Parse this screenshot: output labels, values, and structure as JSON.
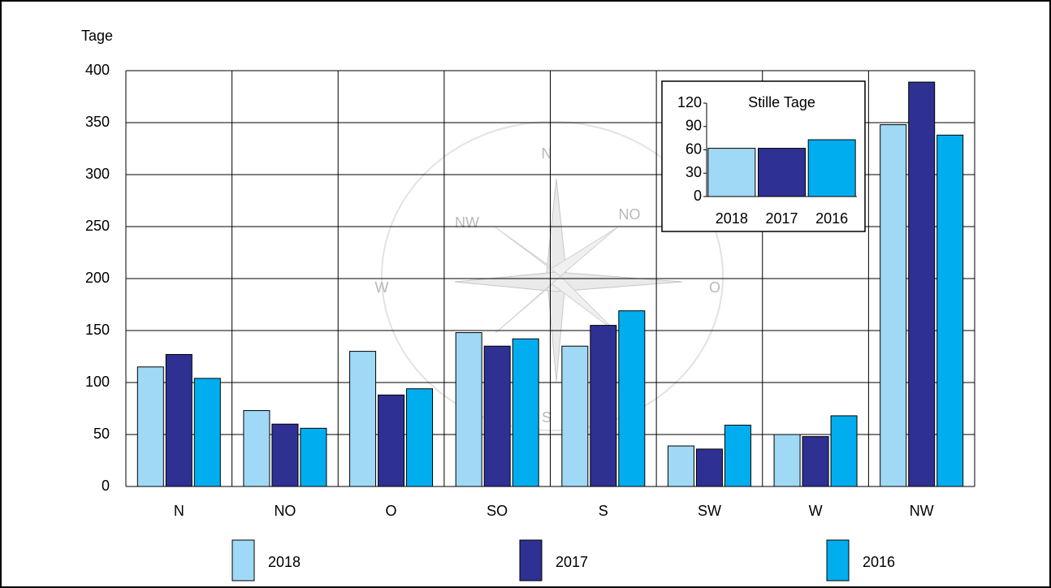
{
  "chart_data": [
    {
      "type": "bar",
      "y_label": "Tage",
      "categories": [
        "N",
        "NO",
        "O",
        "SO",
        "S",
        "SW",
        "W",
        "NW"
      ],
      "series": [
        {
          "name": "2018",
          "color": "#9fd9f5",
          "values": [
            115,
            73,
            130,
            148,
            135,
            39,
            50,
            348
          ]
        },
        {
          "name": "2017",
          "color": "#2e3192",
          "values": [
            127,
            60,
            88,
            135,
            155,
            36,
            48,
            389
          ]
        },
        {
          "name": "2016",
          "color": "#00aeef",
          "values": [
            104,
            56,
            94,
            142,
            169,
            59,
            68,
            338
          ]
        }
      ],
      "ylim": [
        0,
        400
      ],
      "yticks": [
        0,
        50,
        100,
        150,
        200,
        250,
        300,
        350,
        400
      ],
      "grid": true,
      "legend": "bottom"
    },
    {
      "type": "bar",
      "title": "Stille Tage",
      "categories": [
        "2018",
        "2017",
        "2016"
      ],
      "values": [
        62,
        62,
        73
      ],
      "colors": [
        "#9fd9f5",
        "#2e3192",
        "#00aeef"
      ],
      "ylim": [
        0,
        120
      ],
      "yticks": [
        0,
        30,
        60,
        90,
        120
      ],
      "grid": false
    }
  ],
  "background": {
    "compass_labels": [
      "N",
      "NO",
      "O",
      "S",
      "W",
      "NW"
    ]
  }
}
